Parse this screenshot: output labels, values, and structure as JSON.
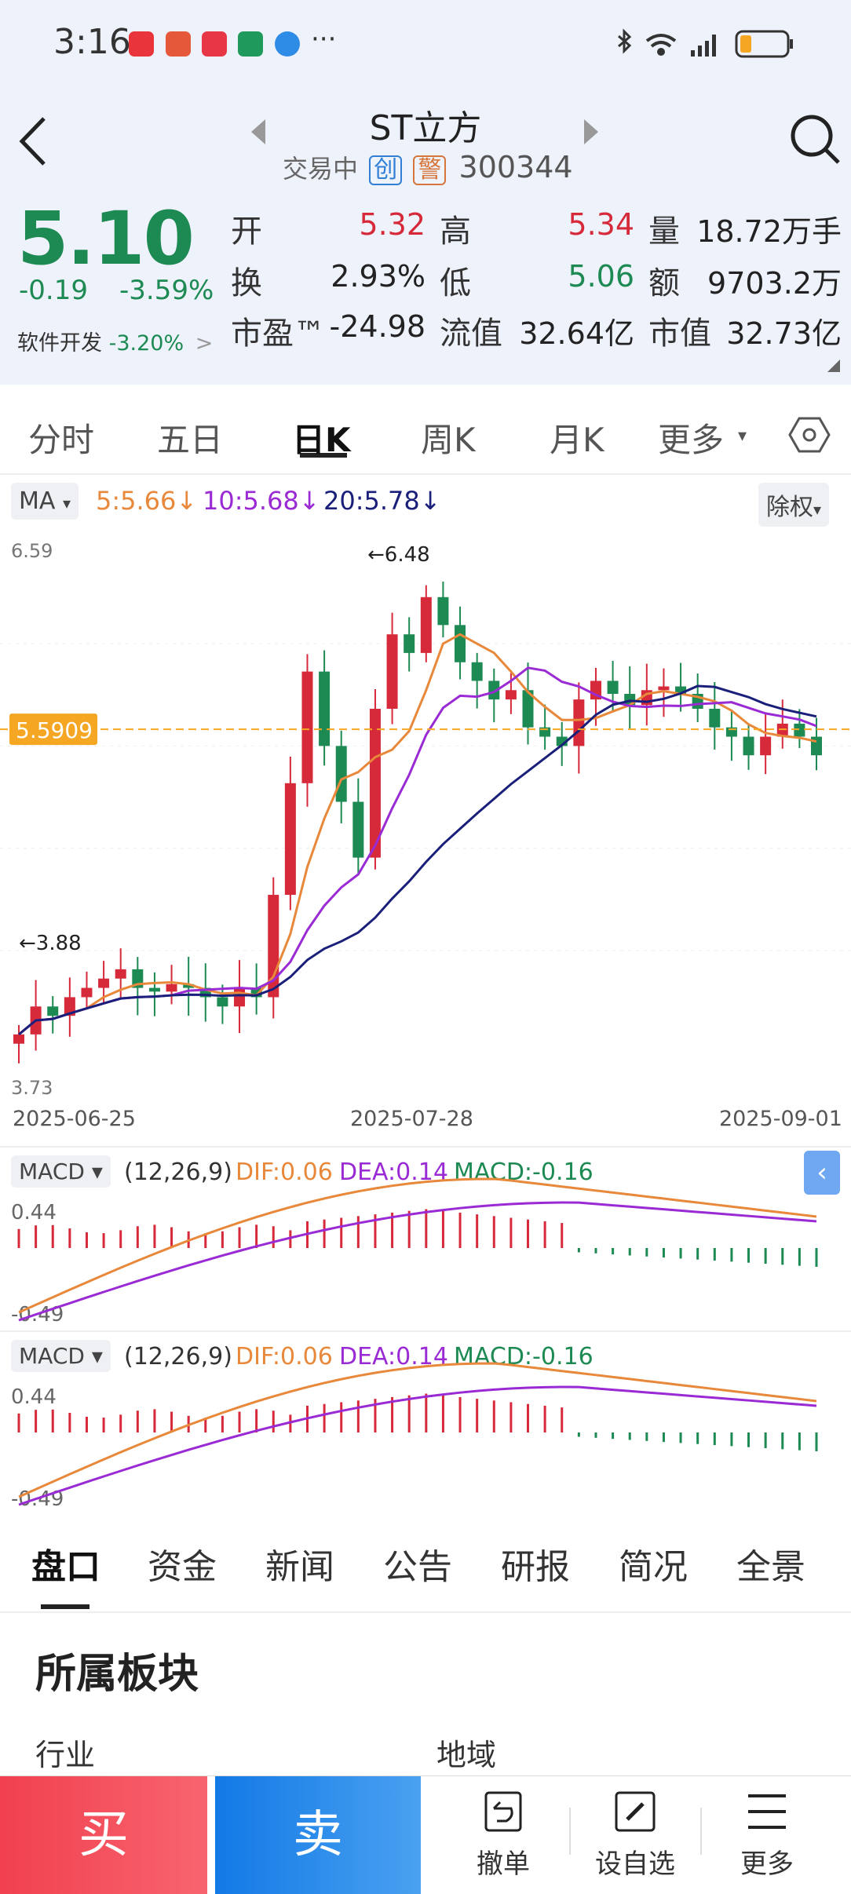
{
  "status": {
    "time": "3:16",
    "more": "···"
  },
  "header": {
    "title": "ST立方",
    "status_text": "交易中",
    "badge_chuang": "创",
    "badge_jing": "警",
    "code": "300344"
  },
  "quote": {
    "price": "5.10",
    "change": "-0.19",
    "change_pct": "-3.59%",
    "sector_label": "软件开发",
    "sector_pct": "-3.20%",
    "sector_arrow": ">",
    "rows": [
      [
        {
          "label": "开",
          "value": "5.32",
          "color": "#d6293a"
        },
        {
          "label": "高",
          "value": "5.34",
          "color": "#d6293a"
        },
        {
          "label": "量",
          "value": "18.72万手",
          "color": "#222"
        }
      ],
      [
        {
          "label": "换",
          "value": "2.93%",
          "color": "#222"
        },
        {
          "label": "低",
          "value": "5.06",
          "color": "#1c8a52"
        },
        {
          "label": "额",
          "value": "9703.2万",
          "color": "#222"
        }
      ],
      [
        {
          "label": "市盈™",
          "value": "-24.98",
          "color": "#222"
        },
        {
          "label": "流值",
          "value": "32.64亿",
          "color": "#222"
        },
        {
          "label": "市值",
          "value": "32.73亿",
          "color": "#222"
        }
      ]
    ]
  },
  "period_tabs": [
    "分时",
    "五日",
    "日K",
    "周K",
    "月K",
    "更多"
  ],
  "ma": {
    "selector": "MA",
    "ma5": "5:5.66",
    "ma10": "10:5.68",
    "ma20": "20:5.78",
    "adjust": "除权"
  },
  "kline": {
    "high_label": "6.59",
    "low_label": "3.73",
    "max_marker": "6.48",
    "min_marker": "3.88",
    "current_line": "5.5909",
    "dates": [
      "2025-06-25",
      "2025-07-28",
      "2025-09-01"
    ]
  },
  "macd": {
    "selector": "MACD",
    "params": "(12,26,9)",
    "dif": "DIF:0.06",
    "dea": "DEA:0.14",
    "macd": "MACD:-0.16",
    "top": "0.44",
    "bottom": "-0.49"
  },
  "info_tabs": [
    "盘口",
    "资金",
    "新闻",
    "公告",
    "研报",
    "简况",
    "全景"
  ],
  "section": {
    "title": "所属板块",
    "left": "行业",
    "right": "地域"
  },
  "bottom": {
    "buy": "买",
    "sell": "卖",
    "cancel": "撤单",
    "watch": "设自选",
    "more": "更多"
  },
  "colors": {
    "up": "#d6293a",
    "down": "#1c8a52",
    "ma5": "#e8883a",
    "ma10": "#9a2bd4",
    "ma20": "#1a1f7a",
    "accent": "#1279e6"
  }
}
